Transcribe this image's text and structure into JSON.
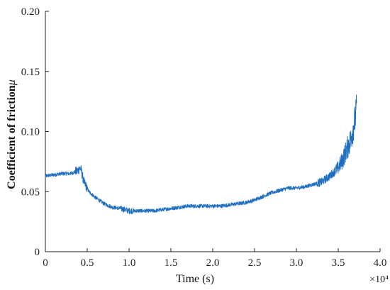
{
  "chart_data": {
    "type": "line",
    "title": "",
    "xlabel": "Time  (s)",
    "ylabel": "Coefficient of friction",
    "ylabel_symbol": "μ",
    "x_multiplier": "×10⁴",
    "xlim": [
      0,
      4.0
    ],
    "ylim": [
      0,
      0.2
    ],
    "x_ticks": [
      "0",
      "0.5",
      "1.0",
      "1.5",
      "2.0",
      "2.5",
      "3.0",
      "3.5",
      "4.0"
    ],
    "y_ticks": [
      "0",
      "0.05",
      "0.10",
      "0.15",
      "0.20"
    ],
    "grid": false,
    "line_color": "#1f6fc0",
    "series": [
      {
        "x": [
          0.0,
          0.1,
          0.2,
          0.3,
          0.38,
          0.42,
          0.46,
          0.52,
          0.6,
          0.7,
          0.8,
          0.9,
          1.0,
          1.1,
          1.2,
          1.3,
          1.4,
          1.5,
          1.6,
          1.7,
          1.8,
          1.9,
          2.0,
          2.1,
          2.2,
          2.3,
          2.4,
          2.5,
          2.6,
          2.7,
          2.8,
          2.9,
          3.0,
          3.1,
          3.2,
          3.3,
          3.4,
          3.5,
          3.55,
          3.6,
          3.65,
          3.7,
          3.72
        ],
        "y": [
          0.063,
          0.064,
          0.065,
          0.065,
          0.067,
          0.07,
          0.058,
          0.05,
          0.045,
          0.04,
          0.037,
          0.036,
          0.034,
          0.034,
          0.034,
          0.034,
          0.035,
          0.036,
          0.037,
          0.038,
          0.038,
          0.038,
          0.038,
          0.038,
          0.039,
          0.04,
          0.041,
          0.043,
          0.046,
          0.049,
          0.051,
          0.053,
          0.053,
          0.054,
          0.056,
          0.058,
          0.063,
          0.07,
          0.076,
          0.085,
          0.093,
          0.11,
          0.12
        ]
      }
    ]
  }
}
